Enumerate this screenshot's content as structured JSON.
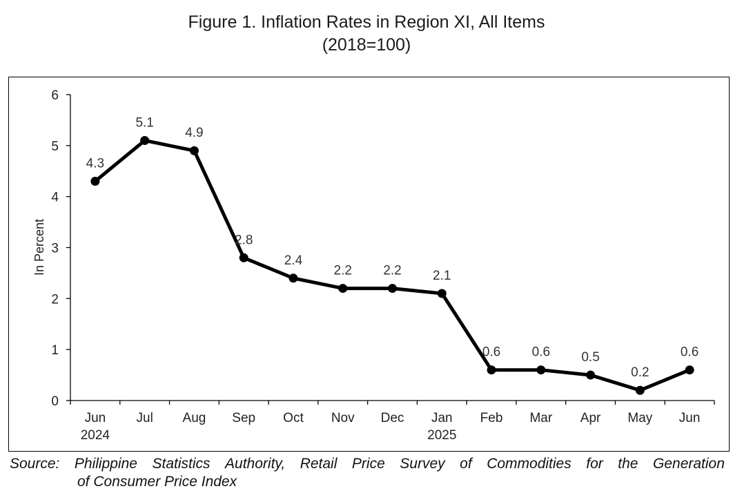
{
  "title_line1": "Figure 1. Inflation Rates in Region XI, All Items",
  "title_line2": "(2018=100)",
  "source_words": [
    "Source:",
    "Philippine",
    "Statistics",
    "Authority,",
    "Retail",
    "Price",
    "Survey",
    "of",
    "Commodities",
    "for",
    "the",
    "Generation"
  ],
  "source_line2": "of Consumer Price Index",
  "chart_data": {
    "type": "line",
    "ylabel": "In Percent",
    "ylim": [
      0,
      6
    ],
    "yticks": [
      "0",
      "1",
      "2",
      "3",
      "4",
      "5",
      "6"
    ],
    "grid": false,
    "categories": [
      "Jun",
      "Jul",
      "Aug",
      "Sep",
      "Oct",
      "Nov",
      "Dec",
      "Jan",
      "Feb",
      "Mar",
      "Apr",
      "May",
      "Jun"
    ],
    "category_years": [
      "2024",
      "",
      "",
      "",
      "",
      "",
      "",
      "2025",
      "",
      "",
      "",
      "",
      ""
    ],
    "series": [
      {
        "values": [
          4.3,
          5.1,
          4.9,
          2.8,
          2.4,
          2.2,
          2.2,
          2.1,
          0.6,
          0.6,
          0.5,
          0.2,
          0.6
        ],
        "labels": [
          "4.3",
          "5.1",
          "4.9",
          "2.8",
          "2.4",
          "2.2",
          "2.2",
          "2.1",
          "0.6",
          "0.6",
          "0.5",
          "0.2",
          "0.6"
        ],
        "color": "#000000"
      }
    ]
  }
}
